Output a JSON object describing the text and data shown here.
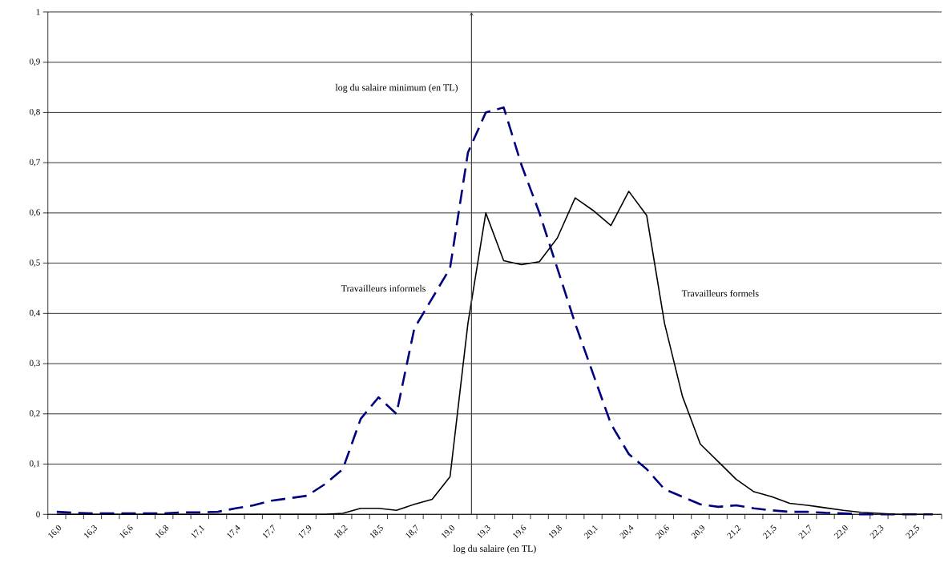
{
  "chart_data": {
    "type": "line",
    "xlabel": "log du salaire (en TL)",
    "categories": [
      "16,0",
      null,
      "16,3",
      null,
      "16,6",
      null,
      "16,8",
      null,
      "17,1",
      null,
      "17,4",
      null,
      "17,7",
      null,
      "17,9",
      null,
      "18,2",
      null,
      "18,5",
      null,
      "18,7",
      null,
      "19,0",
      null,
      "19,3",
      null,
      "19,6",
      null,
      "19,8",
      null,
      "20,1",
      null,
      "20,4",
      null,
      "20,6",
      null,
      "20,9",
      null,
      "21,2",
      null,
      "21,5",
      null,
      "21,7",
      null,
      "22,0",
      null,
      "22,3",
      null,
      "22,5",
      null
    ],
    "series": [
      {
        "name": "Travailleurs informels",
        "color": "#000080",
        "line_style": "dashed",
        "values": [
          0.005,
          0.003,
          0.002,
          0.002,
          0.002,
          0.002,
          0.002,
          0.004,
          0.004,
          0.005,
          0.012,
          0.018,
          0.027,
          0.032,
          0.037,
          0.06,
          0.09,
          0.19,
          0.233,
          0.2,
          0.37,
          0.43,
          0.49,
          0.72,
          0.8,
          0.81,
          0.695,
          0.6,
          0.49,
          0.38,
          0.28,
          0.18,
          0.12,
          0.09,
          0.05,
          0.035,
          0.02,
          0.015,
          0.018,
          0.012,
          0.008,
          0.005,
          0.005,
          0.003,
          0.002,
          0,
          0,
          0,
          0,
          0
        ]
      },
      {
        "name": "Travailleurs formels",
        "color": "#000000",
        "line_style": "solid",
        "values": [
          0,
          0,
          0,
          0,
          0,
          0,
          0,
          0,
          0,
          0,
          0,
          0,
          0,
          0,
          0,
          0,
          0.002,
          0.012,
          0.012,
          0.008,
          0.02,
          0.03,
          0.075,
          0.38,
          0.6,
          0.505,
          0.497,
          0.503,
          0.55,
          0.63,
          0.605,
          0.575,
          0.643,
          0.595,
          0.38,
          0.235,
          0.14,
          0.105,
          0.07,
          0.045,
          0.035,
          0.022,
          0.018,
          0.013,
          0.008,
          0.004,
          0.002,
          0,
          0,
          0
        ]
      }
    ],
    "ylim": [
      0,
      1
    ],
    "yticks": [
      0,
      {
        "value": 0.1,
        "label": "0,1"
      },
      {
        "value": 0.2,
        "label": "0,2"
      },
      {
        "value": 0.3,
        "label": "0,3"
      },
      {
        "value": 0.4,
        "label": "0,4"
      },
      {
        "value": 0.5,
        "label": "0,5"
      },
      {
        "value": 0.6,
        "label": "0,6"
      },
      {
        "value": 0.7,
        "label": "0,7"
      },
      {
        "value": 0.8,
        "label": "0,8"
      },
      {
        "value": 0.9,
        "label": "0,9"
      },
      1
    ],
    "grid": "y",
    "annotations": [
      "log du salaire minimum (en TL)"
    ]
  }
}
